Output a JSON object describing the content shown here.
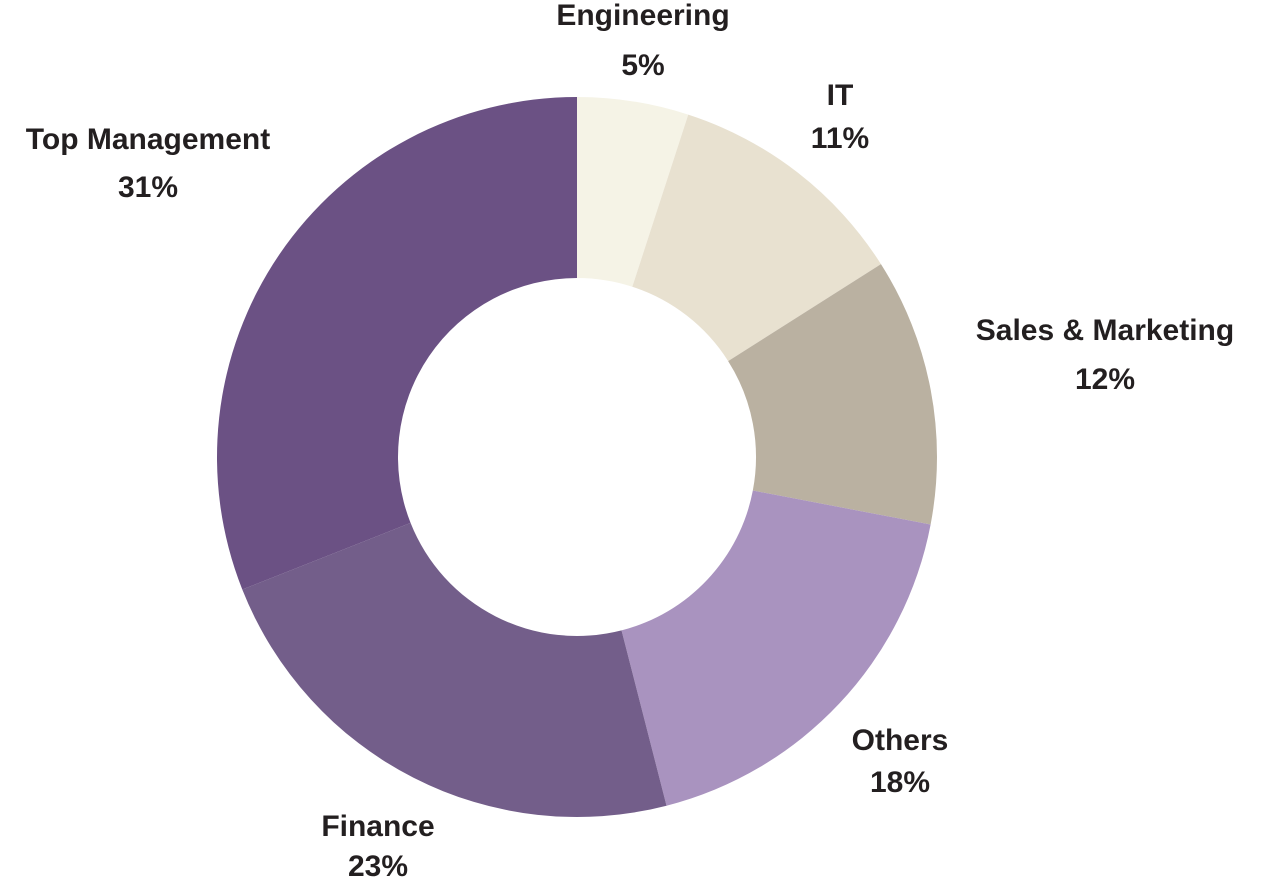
{
  "chart_data": {
    "type": "donut",
    "categories": [
      "Engineering",
      "IT",
      "Sales & Marketing",
      "Others",
      "Finance",
      "Top Management"
    ],
    "values": [
      5,
      11,
      12,
      18,
      23,
      31
    ],
    "value_labels": [
      "5%",
      "11%",
      "12%",
      "18%",
      "23%",
      "31%"
    ],
    "colors": [
      "#f5f3e6",
      "#e8e1d0",
      "#bab1a1",
      "#a993bf",
      "#735e8a",
      "#6b5184"
    ]
  }
}
